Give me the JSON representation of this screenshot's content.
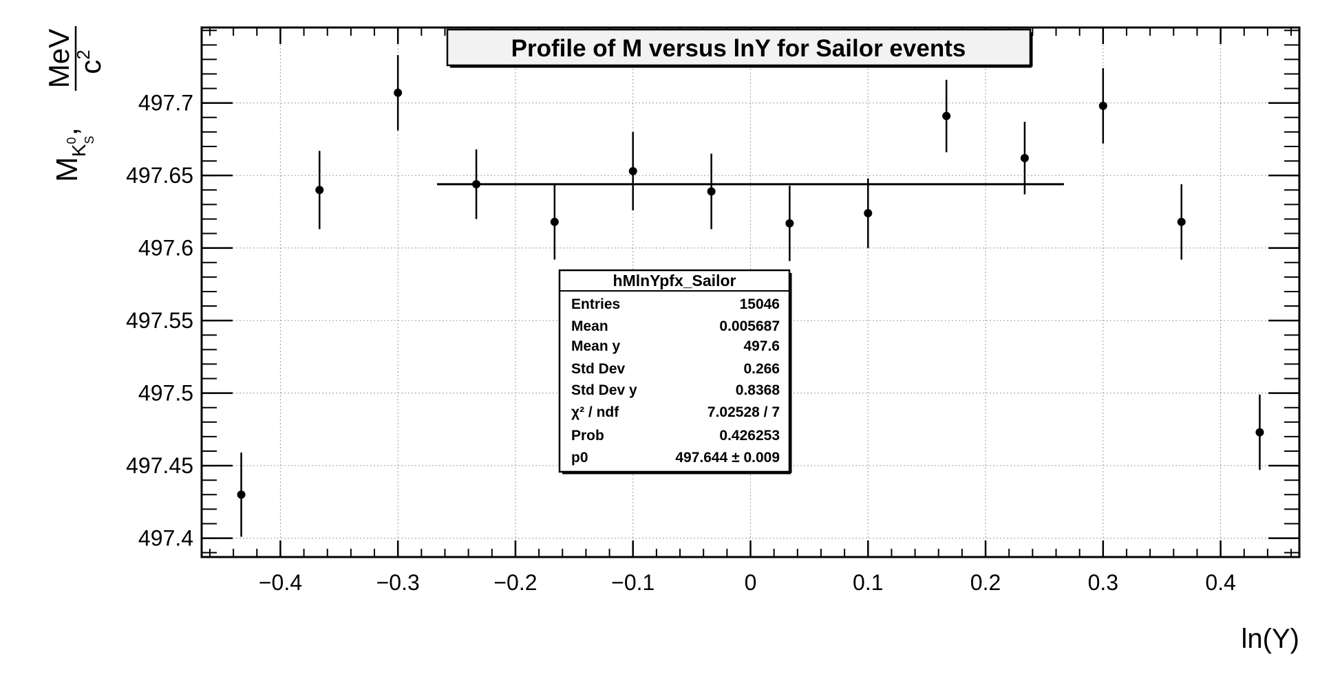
{
  "chart_data": {
    "type": "scatter",
    "title": "Profile of M versus lnY for Sailor events",
    "xlabel": "ln(Y)",
    "ylabel": {
      "main": "M",
      "sub_letter": "K",
      "sub_sup": "0",
      "sub_sub": "S",
      "separator": ",",
      "frac_num": "MeV",
      "frac_den": "c",
      "frac_den_sup": "2"
    },
    "xlim": [
      -0.467,
      0.467
    ],
    "ylim": [
      497.387,
      497.752
    ],
    "grid": true,
    "x_ticks": [
      {
        "value": -0.4,
        "label": "−0.4"
      },
      {
        "value": -0.3,
        "label": "−0.3"
      },
      {
        "value": -0.2,
        "label": "−0.2"
      },
      {
        "value": -0.1,
        "label": "−0.1"
      },
      {
        "value": 0,
        "label": "0"
      },
      {
        "value": 0.1,
        "label": "0.1"
      },
      {
        "value": 0.2,
        "label": "0.2"
      },
      {
        "value": 0.3,
        "label": "0.3"
      },
      {
        "value": 0.4,
        "label": "0.4"
      }
    ],
    "y_ticks": [
      {
        "value": 497.4,
        "label": "497.4"
      },
      {
        "value": 497.45,
        "label": "497.45"
      },
      {
        "value": 497.5,
        "label": "497.5"
      },
      {
        "value": 497.55,
        "label": "497.55"
      },
      {
        "value": 497.6,
        "label": "497.6"
      },
      {
        "value": 497.65,
        "label": "497.65"
      },
      {
        "value": 497.7,
        "label": "497.7"
      }
    ],
    "points": [
      {
        "x": -0.4333,
        "y": 497.43,
        "err": 0.029
      },
      {
        "x": -0.3667,
        "y": 497.64,
        "err": 0.027
      },
      {
        "x": -0.3,
        "y": 497.707,
        "err": 0.026
      },
      {
        "x": -0.2333,
        "y": 497.644,
        "err": 0.024
      },
      {
        "x": -0.1667,
        "y": 497.618,
        "err": 0.026
      },
      {
        "x": -0.1,
        "y": 497.653,
        "err": 0.027
      },
      {
        "x": -0.0333,
        "y": 497.639,
        "err": 0.026
      },
      {
        "x": 0.0333,
        "y": 497.617,
        "err": 0.026
      },
      {
        "x": 0.1,
        "y": 497.624,
        "err": 0.024
      },
      {
        "x": 0.1667,
        "y": 497.691,
        "err": 0.025
      },
      {
        "x": 0.2333,
        "y": 497.662,
        "err": 0.025
      },
      {
        "x": 0.3,
        "y": 497.698,
        "err": 0.026
      },
      {
        "x": 0.3667,
        "y": 497.618,
        "err": 0.026
      },
      {
        "x": 0.4333,
        "y": 497.473,
        "err": 0.026
      }
    ],
    "fit": {
      "x_start": -0.2667,
      "x_end": 0.2667,
      "value": 497.644
    },
    "stats_box": {
      "title": "hMlnYpfx_Sailor",
      "rows": [
        {
          "key": "Entries",
          "value": "15046"
        },
        {
          "key": "Mean",
          "value": "0.005687"
        },
        {
          "key": "Mean y",
          "value": "497.6"
        },
        {
          "key": "Std Dev",
          "value": "0.266"
        },
        {
          "key": "Std Dev y",
          "value": "0.8368"
        },
        {
          "key": "χ² / ndf",
          "value": "7.02528 / 7"
        },
        {
          "key": "Prob",
          "value": "0.426253"
        },
        {
          "key": "p0",
          "value": "497.644 ± 0.009"
        }
      ]
    }
  },
  "colors": {
    "marker": "#000000",
    "fit_line": "#000000",
    "grid": "#9a9a9a",
    "title_box_fill": "#f2f2f2"
  }
}
